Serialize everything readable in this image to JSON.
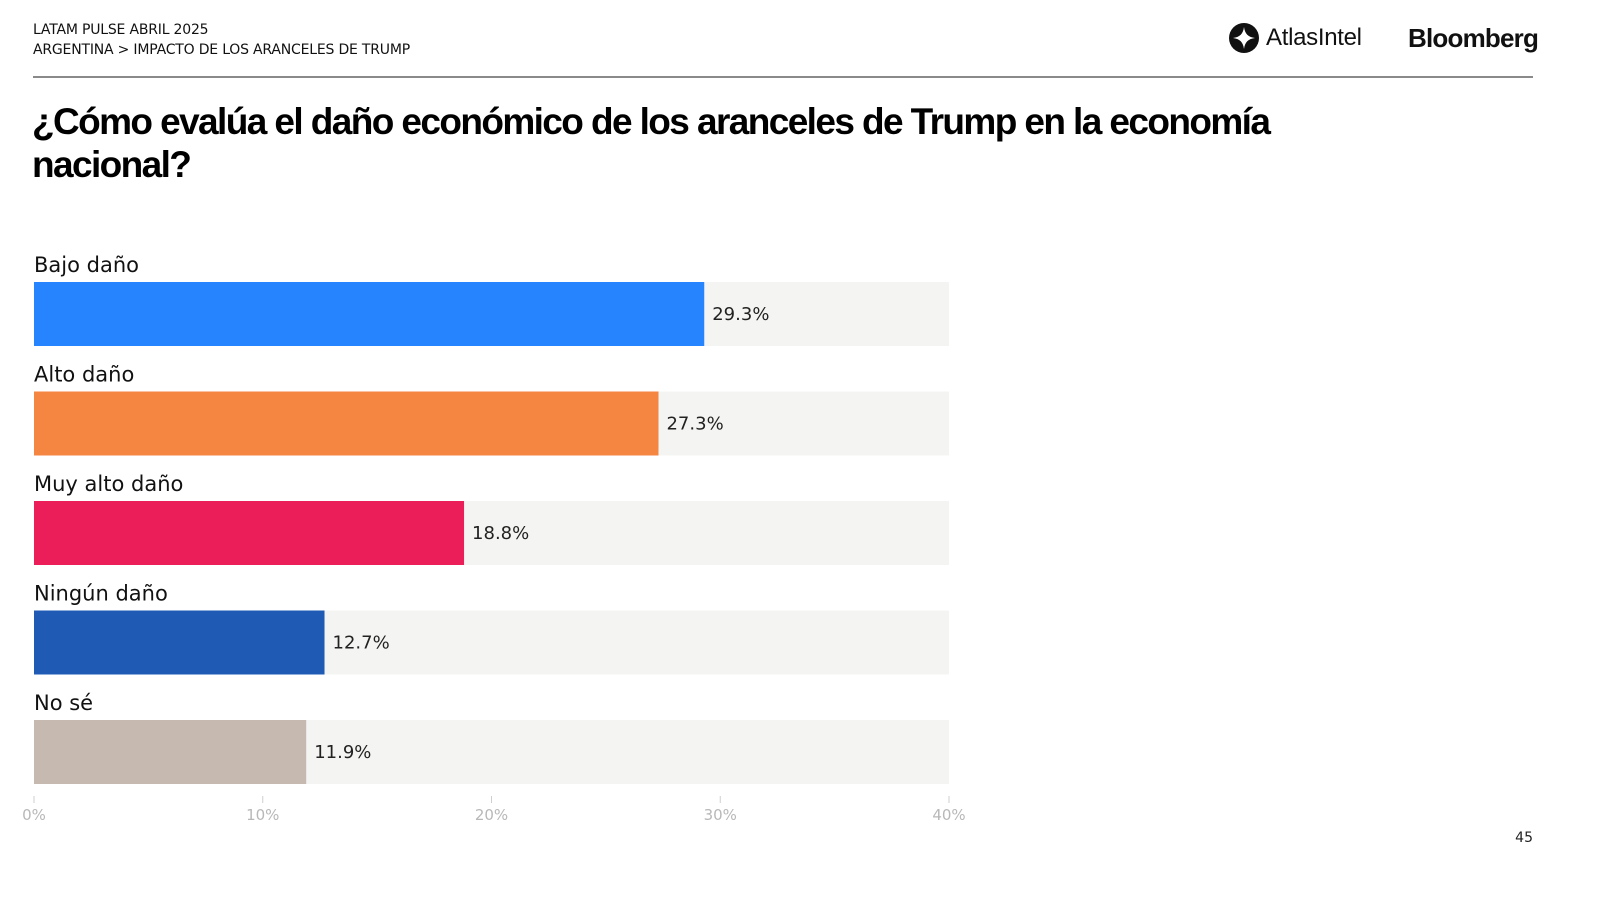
{
  "header": {
    "survey": "LATAM PULSE ABRIL 2025",
    "breadcrumb": "ARGENTINA > IMPACTO DE LOS ARANCELES DE TRUMP",
    "logos": {
      "atlas": "AtlasIntel",
      "atlas_icon": "atlasintel-logo-icon",
      "bloomberg": "Bloomberg"
    }
  },
  "page_number": "45",
  "chart_data": {
    "type": "bar",
    "orientation": "horizontal",
    "title": "¿Cómo evalúa el daño económico de los aranceles de Trump en la economía nacional?",
    "xlabel": "",
    "ylabel": "",
    "categories": [
      "Bajo daño",
      "Alto daño",
      "Muy alto daño",
      "Ningún daño",
      "No sé"
    ],
    "values": [
      29.3,
      27.3,
      18.8,
      12.7,
      11.9
    ],
    "value_labels": [
      "29.3%",
      "27.3%",
      "18.8%",
      "12.7%",
      "11.9%"
    ],
    "colors": [
      "#2684FF",
      "#F48642",
      "#EC1E5A",
      "#1F5BB5",
      "#C5B9B0"
    ],
    "track_color": "#F4F4F2",
    "xlim": [
      0,
      40
    ],
    "xticks": [
      0,
      10,
      20,
      30,
      40
    ],
    "xtick_labels": [
      "0%",
      "10%",
      "20%",
      "30%",
      "40%"
    ],
    "grid": false,
    "legend": "none"
  }
}
